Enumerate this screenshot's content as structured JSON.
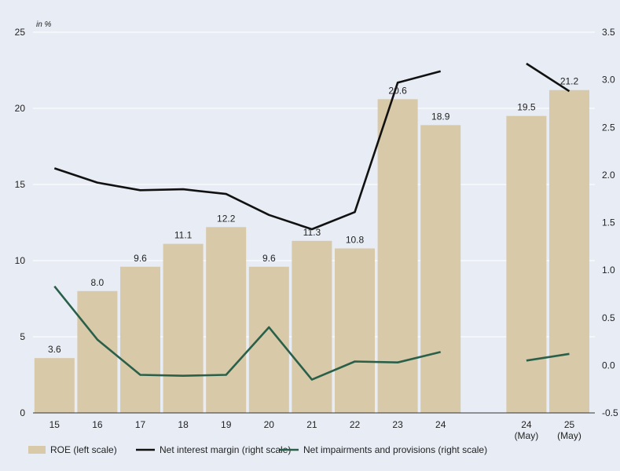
{
  "chart_data": {
    "type": "bar",
    "unit_label": "in %",
    "categories": [
      "15",
      "16",
      "17",
      "18",
      "19",
      "20",
      "21",
      "22",
      "23",
      "24",
      "24\n(May)",
      "25\n(May)"
    ],
    "gap_after_index": 9,
    "left_axis": {
      "ylim": [
        0,
        25
      ],
      "ticks": [
        "0",
        "5",
        "10",
        "15",
        "20",
        "25"
      ]
    },
    "right_axis": {
      "ylim": [
        -0.5,
        3.5
      ],
      "ticks": [
        "-0.5",
        "0.0",
        "0.5",
        "1.0",
        "1.5",
        "2.0",
        "2.5",
        "3.0",
        "3.5"
      ]
    },
    "series": [
      {
        "name": "ROE (left scale)",
        "type": "bar",
        "axis": "left",
        "color": "#d8c9a8",
        "values": [
          3.6,
          8.0,
          9.6,
          11.1,
          12.2,
          9.6,
          11.3,
          10.8,
          20.6,
          18.9,
          19.5,
          21.2
        ],
        "data_labels": [
          "3.6",
          "8.0",
          "9.6",
          "11.1",
          "12.2",
          "9.6",
          "11.3",
          "10.8",
          "20.6",
          "18.9",
          "19.5",
          "21.2"
        ]
      },
      {
        "name": "Net interest margin (right scale)",
        "type": "line",
        "axis": "right",
        "color": "#111111",
        "segments": [
          [
            2.07,
            1.92,
            1.84,
            1.85,
            1.8,
            1.58,
            1.43,
            1.61,
            2.97,
            3.09
          ],
          [
            3.17,
            2.88
          ]
        ]
      },
      {
        "name": "Net impairments and provisions (right scale)",
        "type": "line",
        "axis": "right",
        "color": "#2a6049",
        "segments": [
          [
            0.83,
            0.27,
            -0.1,
            -0.11,
            -0.1,
            0.4,
            -0.15,
            0.04,
            0.03,
            0.14
          ],
          [
            0.05,
            0.12
          ]
        ]
      }
    ],
    "legend": {
      "position": "bottom-left"
    }
  }
}
